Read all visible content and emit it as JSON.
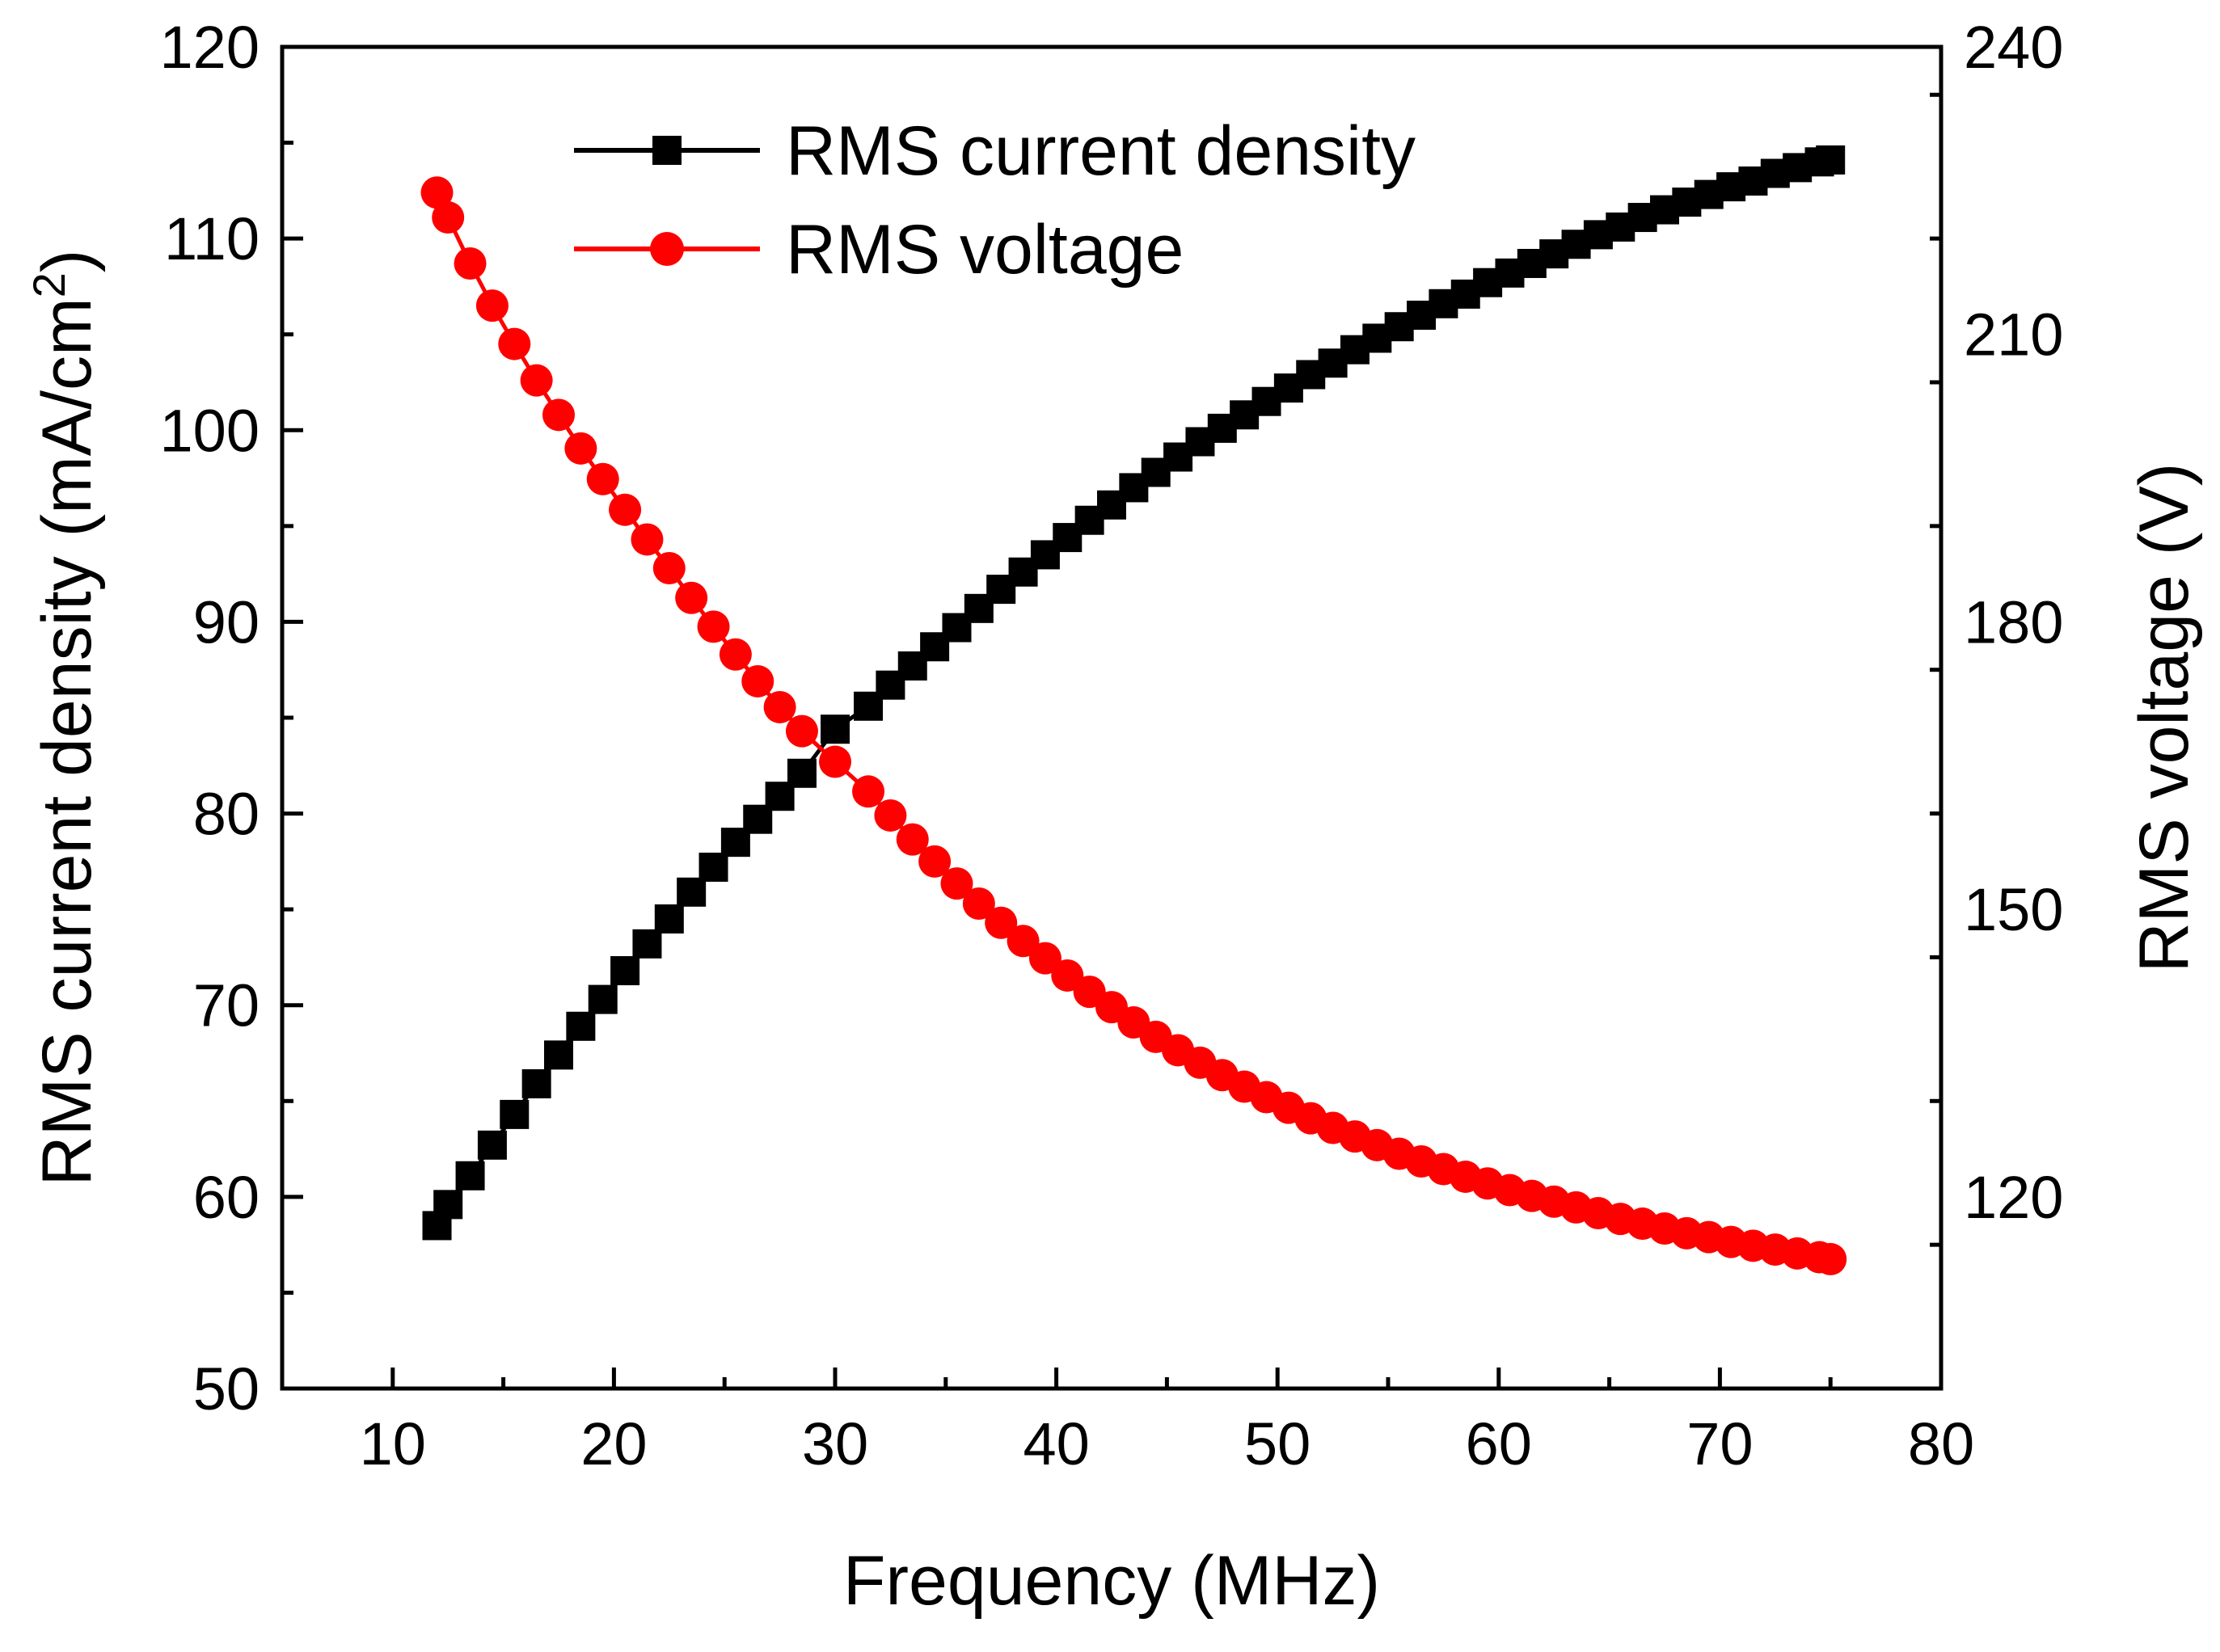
{
  "chart_data": {
    "type": "line",
    "title": "",
    "xlabel": "Frequency (MHz)",
    "ylabel_left": "RMS current density (mA/cm",
    "ylabel_left_sup": "2",
    "ylabel_left_close": ")",
    "ylabel_right": "RMS voltage (V)",
    "xlim": [
      5,
      80
    ],
    "ylim_left": [
      50,
      120
    ],
    "ylim_right": [
      100,
      240
    ],
    "x_ticks": [
      10,
      20,
      30,
      40,
      50,
      60,
      70,
      80
    ],
    "y_left_ticks": [
      50,
      60,
      70,
      80,
      90,
      100,
      110,
      120
    ],
    "y_right_ticks": [
      120,
      150,
      180,
      210,
      240
    ],
    "grid": false,
    "legend_position": "top-center",
    "x": [
      12.0,
      12.5,
      13.5,
      14.5,
      15.5,
      16.5,
      17.5,
      18.5,
      19.5,
      20.5,
      21.5,
      22.5,
      23.5,
      24.5,
      25.5,
      26.5,
      27.5,
      28.5,
      30.0,
      31.5,
      32.5,
      33.5,
      34.5,
      35.5,
      36.5,
      37.5,
      38.5,
      39.5,
      40.5,
      41.5,
      42.5,
      43.5,
      44.5,
      45.5,
      46.5,
      47.5,
      48.5,
      49.5,
      50.5,
      51.5,
      52.5,
      53.5,
      54.5,
      55.5,
      56.5,
      57.5,
      58.5,
      59.5,
      60.5,
      61.5,
      62.5,
      63.5,
      64.5,
      65.5,
      66.5,
      67.5,
      68.5,
      69.5,
      70.5,
      71.5,
      72.5,
      73.5,
      74.5,
      75.0
    ],
    "series": [
      {
        "name": "RMS current density",
        "axis": "left",
        "color": "#000000",
        "marker": "square",
        "values": [
          58.5,
          59.6,
          61.1,
          62.7,
          64.3,
          65.9,
          67.4,
          68.9,
          70.3,
          71.8,
          73.2,
          74.5,
          75.9,
          77.2,
          78.5,
          79.7,
          80.9,
          82.1,
          84.4,
          85.6,
          86.7,
          87.7,
          88.7,
          89.7,
          90.7,
          91.7,
          92.6,
          93.5,
          94.4,
          95.3,
          96.1,
          97.0,
          97.8,
          98.6,
          99.4,
          100.1,
          100.8,
          101.5,
          102.2,
          102.9,
          103.5,
          104.2,
          104.8,
          105.4,
          106.0,
          106.6,
          107.1,
          107.7,
          108.2,
          108.7,
          109.2,
          109.7,
          110.2,
          110.6,
          111.1,
          111.5,
          111.9,
          112.3,
          112.7,
          113.0,
          113.4,
          113.7,
          114.0,
          114.1
        ]
      },
      {
        "name": "RMS voltage",
        "axis": "right",
        "color": "#ff0000",
        "marker": "circle",
        "values": [
          224.8,
          222.2,
          217.4,
          213.0,
          209.0,
          205.2,
          201.6,
          198.1,
          194.9,
          191.7,
          188.6,
          185.6,
          182.5,
          179.5,
          176.6,
          173.8,
          171.1,
          168.6,
          165.4,
          162.3,
          159.8,
          157.3,
          155.0,
          152.7,
          150.6,
          148.6,
          146.7,
          144.9,
          143.1,
          141.4,
          139.8,
          138.2,
          136.7,
          135.3,
          134.0,
          132.7,
          131.5,
          130.4,
          129.3,
          128.2,
          127.2,
          126.3,
          125.4,
          124.5,
          123.7,
          122.9,
          122.1,
          121.4,
          120.7,
          120.1,
          119.5,
          118.9,
          118.3,
          117.7,
          117.2,
          116.7,
          116.2,
          115.8,
          115.3,
          114.9,
          114.5,
          114.1,
          113.7,
          113.5
        ]
      }
    ]
  }
}
